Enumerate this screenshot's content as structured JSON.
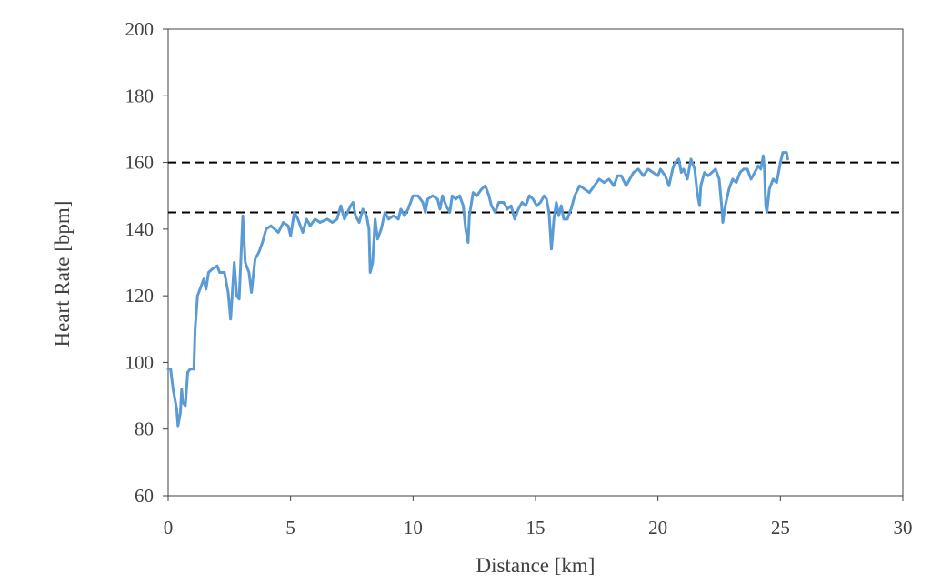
{
  "chart_data": {
    "type": "line",
    "title": "",
    "xlabel": "Distance [km]",
    "ylabel": "Heart Rate [bpm]",
    "xlim": [
      0,
      30
    ],
    "ylim": [
      60,
      200
    ],
    "x_ticks": [
      0,
      5,
      10,
      15,
      20,
      25,
      30
    ],
    "y_ticks": [
      60,
      80,
      100,
      120,
      140,
      160,
      180,
      200
    ],
    "grid": false,
    "legend": "none",
    "series": [
      {
        "color": "#5b9bd5",
        "points": [
          [
            0.0,
            98
          ],
          [
            0.1,
            98
          ],
          [
            0.2,
            92
          ],
          [
            0.35,
            86
          ],
          [
            0.4,
            81
          ],
          [
            0.5,
            85
          ],
          [
            0.55,
            92
          ],
          [
            0.6,
            88
          ],
          [
            0.7,
            87
          ],
          [
            0.8,
            97
          ],
          [
            0.9,
            98
          ],
          [
            1.05,
            98
          ],
          [
            1.1,
            110
          ],
          [
            1.2,
            120
          ],
          [
            1.35,
            123
          ],
          [
            1.45,
            125
          ],
          [
            1.55,
            122
          ],
          [
            1.65,
            127
          ],
          [
            1.8,
            128
          ],
          [
            2.0,
            129
          ],
          [
            2.1,
            127
          ],
          [
            2.3,
            127
          ],
          [
            2.45,
            121
          ],
          [
            2.55,
            113
          ],
          [
            2.7,
            130
          ],
          [
            2.8,
            120
          ],
          [
            2.9,
            119
          ],
          [
            3.0,
            136
          ],
          [
            3.05,
            144
          ],
          [
            3.15,
            130
          ],
          [
            3.3,
            127
          ],
          [
            3.4,
            121
          ],
          [
            3.55,
            131
          ],
          [
            3.7,
            133
          ],
          [
            3.85,
            136
          ],
          [
            4.0,
            140
          ],
          [
            4.2,
            141
          ],
          [
            4.5,
            139
          ],
          [
            4.7,
            142
          ],
          [
            4.9,
            141
          ],
          [
            5.0,
            138
          ],
          [
            5.15,
            145
          ],
          [
            5.3,
            143
          ],
          [
            5.5,
            139
          ],
          [
            5.65,
            143
          ],
          [
            5.8,
            141
          ],
          [
            6.0,
            143
          ],
          [
            6.2,
            142
          ],
          [
            6.5,
            143
          ],
          [
            6.7,
            142
          ],
          [
            6.9,
            143
          ],
          [
            7.05,
            147
          ],
          [
            7.2,
            143
          ],
          [
            7.45,
            147
          ],
          [
            7.55,
            148
          ],
          [
            7.65,
            144
          ],
          [
            7.8,
            142
          ],
          [
            7.95,
            146
          ],
          [
            8.1,
            144
          ],
          [
            8.2,
            140
          ],
          [
            8.25,
            127
          ],
          [
            8.35,
            130
          ],
          [
            8.45,
            143
          ],
          [
            8.55,
            137
          ],
          [
            8.7,
            140
          ],
          [
            8.85,
            145
          ],
          [
            9.0,
            143
          ],
          [
            9.2,
            144
          ],
          [
            9.4,
            143
          ],
          [
            9.5,
            146
          ],
          [
            9.65,
            144
          ],
          [
            9.8,
            146
          ],
          [
            10.0,
            150
          ],
          [
            10.2,
            150
          ],
          [
            10.4,
            148
          ],
          [
            10.5,
            145
          ],
          [
            10.6,
            149
          ],
          [
            10.8,
            150
          ],
          [
            11.0,
            149
          ],
          [
            11.1,
            146
          ],
          [
            11.2,
            150
          ],
          [
            11.35,
            147
          ],
          [
            11.5,
            145
          ],
          [
            11.6,
            150
          ],
          [
            11.75,
            149
          ],
          [
            11.9,
            150
          ],
          [
            12.05,
            147
          ],
          [
            12.15,
            140
          ],
          [
            12.25,
            136
          ],
          [
            12.3,
            144
          ],
          [
            12.45,
            151
          ],
          [
            12.6,
            150
          ],
          [
            12.8,
            152
          ],
          [
            12.95,
            153
          ],
          [
            13.1,
            150
          ],
          [
            13.2,
            147
          ],
          [
            13.35,
            145
          ],
          [
            13.5,
            148
          ],
          [
            13.7,
            148
          ],
          [
            13.85,
            146
          ],
          [
            14.0,
            147
          ],
          [
            14.15,
            143
          ],
          [
            14.3,
            146
          ],
          [
            14.45,
            148
          ],
          [
            14.6,
            147
          ],
          [
            14.75,
            150
          ],
          [
            14.9,
            149
          ],
          [
            15.05,
            147
          ],
          [
            15.2,
            148
          ],
          [
            15.35,
            150
          ],
          [
            15.45,
            149
          ],
          [
            15.55,
            145
          ],
          [
            15.65,
            134
          ],
          [
            15.75,
            143
          ],
          [
            15.85,
            148
          ],
          [
            15.95,
            144
          ],
          [
            16.05,
            147
          ],
          [
            16.15,
            143
          ],
          [
            16.3,
            143
          ],
          [
            16.45,
            146
          ],
          [
            16.6,
            150
          ],
          [
            16.8,
            153
          ],
          [
            17.0,
            152
          ],
          [
            17.2,
            151
          ],
          [
            17.4,
            153
          ],
          [
            17.6,
            155
          ],
          [
            17.8,
            154
          ],
          [
            18.0,
            155
          ],
          [
            18.2,
            153
          ],
          [
            18.35,
            156
          ],
          [
            18.5,
            156
          ],
          [
            18.7,
            153
          ],
          [
            18.85,
            155
          ],
          [
            19.0,
            157
          ],
          [
            19.2,
            158
          ],
          [
            19.4,
            156
          ],
          [
            19.6,
            158
          ],
          [
            19.8,
            157
          ],
          [
            20.0,
            156
          ],
          [
            20.1,
            158
          ],
          [
            20.3,
            156
          ],
          [
            20.45,
            153
          ],
          [
            20.6,
            158
          ],
          [
            20.7,
            160
          ],
          [
            20.85,
            161
          ],
          [
            20.95,
            157
          ],
          [
            21.05,
            158
          ],
          [
            21.2,
            155
          ],
          [
            21.35,
            161
          ],
          [
            21.5,
            158
          ],
          [
            21.6,
            151
          ],
          [
            21.7,
            147
          ],
          [
            21.75,
            153
          ],
          [
            21.9,
            157
          ],
          [
            22.05,
            156
          ],
          [
            22.2,
            157
          ],
          [
            22.35,
            158
          ],
          [
            22.5,
            155
          ],
          [
            22.6,
            147
          ],
          [
            22.65,
            142
          ],
          [
            22.75,
            147
          ],
          [
            22.9,
            152
          ],
          [
            23.05,
            155
          ],
          [
            23.2,
            154
          ],
          [
            23.35,
            157
          ],
          [
            23.5,
            158
          ],
          [
            23.65,
            158
          ],
          [
            23.8,
            155
          ],
          [
            23.95,
            157
          ],
          [
            24.1,
            159
          ],
          [
            24.2,
            158
          ],
          [
            24.3,
            162
          ],
          [
            24.35,
            158
          ],
          [
            24.4,
            147
          ],
          [
            24.45,
            145
          ],
          [
            24.55,
            152
          ],
          [
            24.7,
            155
          ],
          [
            24.85,
            154
          ],
          [
            25.0,
            160
          ],
          [
            25.1,
            163
          ],
          [
            25.25,
            163
          ],
          [
            25.3,
            161
          ]
        ]
      }
    ],
    "reference_lines": [
      {
        "y": 160,
        "style": "dashed",
        "color": "#000000"
      },
      {
        "y": 145,
        "style": "dashed",
        "color": "#000000"
      }
    ]
  }
}
